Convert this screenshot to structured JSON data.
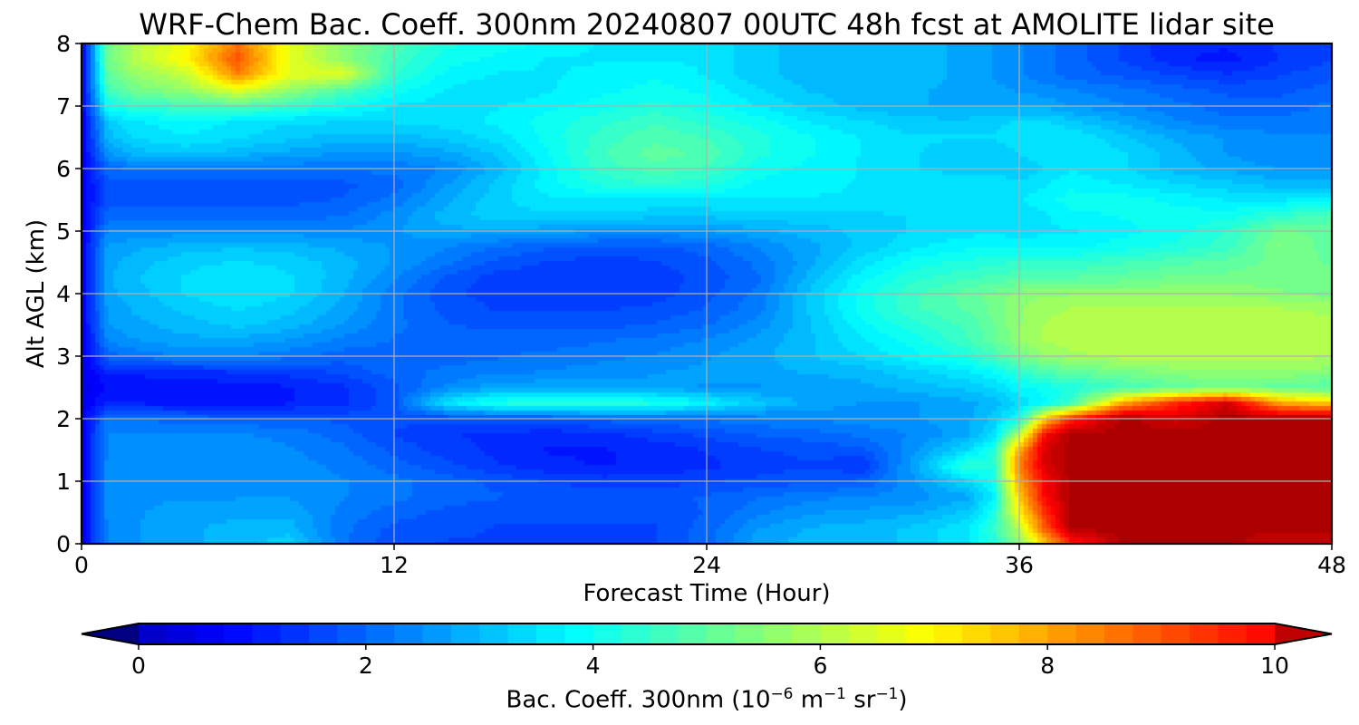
{
  "chart_data": {
    "type": "heatmap",
    "title": "WRF-Chem Bac. Coeff. 300nm  20240807 00UTC 48h fcst at AMOLITE lidar site",
    "xlabel": "Forecast Time (Hour)",
    "ylabel": "Alt AGL (km)",
    "xlim": [
      0,
      48
    ],
    "ylim": [
      0,
      8
    ],
    "x_ticks": [
      "0",
      "12",
      "24",
      "36",
      "48"
    ],
    "y_ticks": [
      "0",
      "1",
      "2",
      "3",
      "4",
      "5",
      "6",
      "7",
      "8"
    ],
    "grid": true,
    "colormap": "jet",
    "colorbar": {
      "orientation": "horizontal",
      "extend": "both",
      "range": [
        0,
        10
      ],
      "ticks": [
        "0",
        "2",
        "4",
        "6",
        "8",
        "10"
      ],
      "label_main": "Bac. Coeff. 300nm  (10",
      "label_exp1": "−6",
      "label_unit1": " m",
      "label_exp2": "−1",
      "label_unit2": " sr",
      "label_exp3": "−1",
      "label_end": ")"
    },
    "x": [
      0,
      1,
      2,
      4,
      6,
      8,
      10,
      12,
      14,
      16,
      18,
      20,
      22,
      24,
      26,
      28,
      30,
      32,
      34,
      35,
      36,
      37,
      38,
      40,
      42,
      44,
      46,
      48
    ],
    "y": [
      0,
      0.25,
      0.5,
      0.75,
      1,
      1.25,
      1.5,
      1.75,
      2,
      2.25,
      2.5,
      2.75,
      3,
      3.25,
      3.5,
      3.75,
      4,
      4.25,
      4.5,
      4.75,
      5,
      5.25,
      5.5,
      5.75,
      6,
      6.25,
      6.5,
      6.75,
      7,
      7.25,
      7.5,
      7.75,
      8
    ],
    "z": [
      [
        0.6,
        2.4,
        2.6,
        2.8,
        3.0,
        3.3,
        2.2,
        1.7,
        1.6,
        1.6,
        1.6,
        1.6,
        1.6,
        2.0,
        2.8,
        3.0,
        3.0,
        3.2,
        3.6,
        4.2,
        5.5,
        7.5,
        9.5,
        11.0,
        11.0,
        11.0,
        10.5,
        10.5
      ],
      [
        0.6,
        2.4,
        2.6,
        2.8,
        3.0,
        3.0,
        2.2,
        1.8,
        1.7,
        1.6,
        1.6,
        1.6,
        1.6,
        2.0,
        2.6,
        2.9,
        3.0,
        3.2,
        3.6,
        4.4,
        6.0,
        9.0,
        11.0,
        11.0,
        11.0,
        11.0,
        11.0,
        11.0
      ],
      [
        0.6,
        2.5,
        2.6,
        2.7,
        2.8,
        2.8,
        2.3,
        2.0,
        1.8,
        1.7,
        1.7,
        1.7,
        1.7,
        1.9,
        2.3,
        2.6,
        2.7,
        2.8,
        3.2,
        4.0,
        7.0,
        9.5,
        11.0,
        11.0,
        11.0,
        11.0,
        11.0,
        11.0
      ],
      [
        0.6,
        2.5,
        2.6,
        2.6,
        2.6,
        2.6,
        2.4,
        2.2,
        2.0,
        1.9,
        1.8,
        1.8,
        1.8,
        1.9,
        2.1,
        2.3,
        2.4,
        2.5,
        2.8,
        3.6,
        7.5,
        10.0,
        11.0,
        11.0,
        11.0,
        11.0,
        11.0,
        11.0
      ],
      [
        0.6,
        2.5,
        2.5,
        2.5,
        2.5,
        2.5,
        2.4,
        2.2,
        2.0,
        1.8,
        1.6,
        1.5,
        1.5,
        1.6,
        1.7,
        1.8,
        1.9,
        2.6,
        3.4,
        4.0,
        8.0,
        10.0,
        11.0,
        11.0,
        11.0,
        11.0,
        11.0,
        11.0
      ],
      [
        0.6,
        2.5,
        2.5,
        2.5,
        2.5,
        2.5,
        2.3,
        2.0,
        1.7,
        1.4,
        1.2,
        1.1,
        1.2,
        1.3,
        1.5,
        1.6,
        1.4,
        2.8,
        4.4,
        4.2,
        8.5,
        10.5,
        11.0,
        11.0,
        11.0,
        11.0,
        11.0,
        11.0
      ],
      [
        0.6,
        2.4,
        2.5,
        2.5,
        2.5,
        2.4,
        2.2,
        1.8,
        1.5,
        1.3,
        1.1,
        1.1,
        1.2,
        1.4,
        1.6,
        1.7,
        1.8,
        2.6,
        3.4,
        4.2,
        8.0,
        10.5,
        11.0,
        11.0,
        11.0,
        11.0,
        11.0,
        11.0
      ],
      [
        0.6,
        2.4,
        2.4,
        2.4,
        2.4,
        2.3,
        2.0,
        1.6,
        1.4,
        1.3,
        1.2,
        1.3,
        1.5,
        1.7,
        1.9,
        2.0,
        2.2,
        2.4,
        2.8,
        3.4,
        6.0,
        10.0,
        11.0,
        11.0,
        11.0,
        11.0,
        11.0,
        11.0
      ],
      [
        0.6,
        2.2,
        2.1,
        2.0,
        1.9,
        1.9,
        1.8,
        1.7,
        1.7,
        1.8,
        1.9,
        2.0,
        2.1,
        2.2,
        2.3,
        2.4,
        2.5,
        2.6,
        2.8,
        3.2,
        4.0,
        7.5,
        9.5,
        11.0,
        10.5,
        11.0,
        11.0,
        11.0
      ],
      [
        0.5,
        1.2,
        1.1,
        1.0,
        1.0,
        1.1,
        1.3,
        1.8,
        3.6,
        4.2,
        4.4,
        4.4,
        4.2,
        3.8,
        3.2,
        2.8,
        2.6,
        2.6,
        2.8,
        3.0,
        3.4,
        3.8,
        4.5,
        8.0,
        9.5,
        10.5,
        8.0,
        7.5
      ],
      [
        0.5,
        0.9,
        0.9,
        0.9,
        1.0,
        1.1,
        1.3,
        1.8,
        2.4,
        2.8,
        2.8,
        2.8,
        2.7,
        2.6,
        2.6,
        2.7,
        2.8,
        3.0,
        3.2,
        3.4,
        3.8,
        4.0,
        4.2,
        4.6,
        5.0,
        5.2,
        5.0,
        4.8
      ],
      [
        0.5,
        1.2,
        1.2,
        1.3,
        1.4,
        1.5,
        1.7,
        2.0,
        2.2,
        2.3,
        2.4,
        2.5,
        2.6,
        2.7,
        2.8,
        2.9,
        3.0,
        3.3,
        3.6,
        3.9,
        4.4,
        4.8,
        5.0,
        5.3,
        5.5,
        5.6,
        5.6,
        5.5
      ],
      [
        0.5,
        2.0,
        2.2,
        2.4,
        2.4,
        2.2,
        2.0,
        2.0,
        2.0,
        2.1,
        2.2,
        2.3,
        2.4,
        2.6,
        2.8,
        3.1,
        3.4,
        3.8,
        4.2,
        4.6,
        5.2,
        5.6,
        5.8,
        6.0,
        6.0,
        6.0,
        6.0,
        5.9
      ],
      [
        0.5,
        2.4,
        2.6,
        2.8,
        2.8,
        2.6,
        2.3,
        2.1,
        2.0,
        2.0,
        2.0,
        2.1,
        2.2,
        2.4,
        2.7,
        3.1,
        3.6,
        4.0,
        4.6,
        5.0,
        5.6,
        5.9,
        6.0,
        6.0,
        6.0,
        6.0,
        6.0,
        5.9
      ],
      [
        0.6,
        2.6,
        2.8,
        3.0,
        3.2,
        3.0,
        2.6,
        2.2,
        1.9,
        1.8,
        1.8,
        1.8,
        1.9,
        2.1,
        2.5,
        3.1,
        3.8,
        4.3,
        4.7,
        5.1,
        5.6,
        5.9,
        6.0,
        6.0,
        6.0,
        6.0,
        6.0,
        6.0
      ],
      [
        0.6,
        2.7,
        2.9,
        3.2,
        3.4,
        3.2,
        2.8,
        2.2,
        1.8,
        1.6,
        1.6,
        1.6,
        1.7,
        1.9,
        2.3,
        3.2,
        4.0,
        4.6,
        4.9,
        5.2,
        5.6,
        5.8,
        5.9,
        6.0,
        6.0,
        6.0,
        5.9,
        5.8
      ],
      [
        0.6,
        2.8,
        3.0,
        3.4,
        3.6,
        3.4,
        2.9,
        2.2,
        1.7,
        1.5,
        1.4,
        1.4,
        1.5,
        1.8,
        2.2,
        3.2,
        4.0,
        4.6,
        5.0,
        5.2,
        5.5,
        5.6,
        5.6,
        5.6,
        5.6,
        5.6,
        5.4,
        5.3
      ],
      [
        0.6,
        2.8,
        3.1,
        3.4,
        3.6,
        3.4,
        3.0,
        2.4,
        1.8,
        1.5,
        1.4,
        1.4,
        1.5,
        1.7,
        2.1,
        3.0,
        3.8,
        4.3,
        4.6,
        4.7,
        4.8,
        4.8,
        4.9,
        5.0,
        5.2,
        5.2,
        5.3,
        5.2
      ],
      [
        0.6,
        2.8,
        3.0,
        3.3,
        3.4,
        3.3,
        3.0,
        2.6,
        2.2,
        1.8,
        1.6,
        1.5,
        1.6,
        1.8,
        2.2,
        2.8,
        3.5,
        4.0,
        4.2,
        4.3,
        4.4,
        4.4,
        4.4,
        4.6,
        4.8,
        5.0,
        5.2,
        5.1
      ],
      [
        0.6,
        2.7,
        2.8,
        3.0,
        3.1,
        3.0,
        2.8,
        2.6,
        2.4,
        2.1,
        1.9,
        1.8,
        1.8,
        2.0,
        2.4,
        2.8,
        3.2,
        3.6,
        3.8,
        3.9,
        3.8,
        3.8,
        3.8,
        4.0,
        4.2,
        4.5,
        5.4,
        5.0
      ],
      [
        0.6,
        2.4,
        2.4,
        2.5,
        2.5,
        2.5,
        2.4,
        2.6,
        2.8,
        2.8,
        2.7,
        2.6,
        2.6,
        2.6,
        2.8,
        3.0,
        3.2,
        3.4,
        3.5,
        3.6,
        3.4,
        3.6,
        3.6,
        3.8,
        4.0,
        4.4,
        5.2,
        5.0
      ],
      [
        0.6,
        2.0,
        2.0,
        2.0,
        2.0,
        2.0,
        2.1,
        2.5,
        3.0,
        3.3,
        3.3,
        3.3,
        3.2,
        3.2,
        3.3,
        3.3,
        3.3,
        3.4,
        3.4,
        3.4,
        3.4,
        3.6,
        3.8,
        3.9,
        4.0,
        4.0,
        4.4,
        4.8
      ],
      [
        0.6,
        1.8,
        1.8,
        1.8,
        1.8,
        1.8,
        1.9,
        2.2,
        2.8,
        3.3,
        3.6,
        3.6,
        3.6,
        3.6,
        3.6,
        3.6,
        3.6,
        3.6,
        3.6,
        3.6,
        3.6,
        3.8,
        4.0,
        4.0,
        3.8,
        3.6,
        3.6,
        3.8
      ],
      [
        0.6,
        1.8,
        1.8,
        1.8,
        1.8,
        1.8,
        1.8,
        2.0,
        2.6,
        3.2,
        3.8,
        4.2,
        4.4,
        4.2,
        3.8,
        3.7,
        3.6,
        3.6,
        3.6,
        3.6,
        3.4,
        3.6,
        3.8,
        3.6,
        3.4,
        3.2,
        3.0,
        3.0
      ],
      [
        0.6,
        2.0,
        2.2,
        2.2,
        2.2,
        2.2,
        2.2,
        2.2,
        2.4,
        3.0,
        3.8,
        4.5,
        4.8,
        4.6,
        4.0,
        3.8,
        3.6,
        3.4,
        3.2,
        3.2,
        3.2,
        3.4,
        3.6,
        3.4,
        3.0,
        2.8,
        2.6,
        2.6
      ],
      [
        0.6,
        2.6,
        3.0,
        3.2,
        3.0,
        2.8,
        2.6,
        2.6,
        2.8,
        3.2,
        3.9,
        4.6,
        5.0,
        4.8,
        4.2,
        3.9,
        3.6,
        3.4,
        3.2,
        3.2,
        3.4,
        3.5,
        3.6,
        3.4,
        3.0,
        2.6,
        2.4,
        2.4
      ],
      [
        0.6,
        3.0,
        3.4,
        3.6,
        3.4,
        3.2,
        3.0,
        3.0,
        3.2,
        3.5,
        4.0,
        4.5,
        4.8,
        4.6,
        4.2,
        3.9,
        3.6,
        3.4,
        3.4,
        3.4,
        3.5,
        3.6,
        3.6,
        3.2,
        2.8,
        2.6,
        2.4,
        2.4
      ],
      [
        0.6,
        3.2,
        3.6,
        3.8,
        3.6,
        3.4,
        3.4,
        3.4,
        3.5,
        3.7,
        4.0,
        4.3,
        4.6,
        4.3,
        4.0,
        3.6,
        3.4,
        3.2,
        3.2,
        3.3,
        3.4,
        3.4,
        3.2,
        2.8,
        2.4,
        2.2,
        2.2,
        2.2
      ],
      [
        0.6,
        4.0,
        4.4,
        4.6,
        4.8,
        4.5,
        4.0,
        3.6,
        3.5,
        3.6,
        3.8,
        4.0,
        4.2,
        4.0,
        3.6,
        3.3,
        3.0,
        2.9,
        2.8,
        2.8,
        2.8,
        2.8,
        2.6,
        2.4,
        2.2,
        2.0,
        2.0,
        2.2
      ],
      [
        0.6,
        4.6,
        5.2,
        5.6,
        6.6,
        5.6,
        4.8,
        4.0,
        3.6,
        3.4,
        3.6,
        3.8,
        4.0,
        3.8,
        3.4,
        3.1,
        3.0,
        2.9,
        2.8,
        2.7,
        2.6,
        2.5,
        2.4,
        2.2,
        2.0,
        1.8,
        1.8,
        2.0
      ],
      [
        0.6,
        5.0,
        5.6,
        6.2,
        8.4,
        6.6,
        6.6,
        4.4,
        3.8,
        3.6,
        3.6,
        3.7,
        3.8,
        3.6,
        3.2,
        3.0,
        3.0,
        3.0,
        2.8,
        2.6,
        2.4,
        2.2,
        2.0,
        1.8,
        1.6,
        1.4,
        1.6,
        1.8
      ],
      [
        0.6,
        5.2,
        6.0,
        7.0,
        9.0,
        6.6,
        5.6,
        4.6,
        4.0,
        3.8,
        3.6,
        3.6,
        3.6,
        3.6,
        3.2,
        3.0,
        3.0,
        3.0,
        2.8,
        2.6,
        2.4,
        2.2,
        2.0,
        1.6,
        1.2,
        1.0,
        1.4,
        1.6
      ],
      [
        0.6,
        5.2,
        6.0,
        6.8,
        8.6,
        6.6,
        5.6,
        4.8,
        4.2,
        4.0,
        3.8,
        3.6,
        3.6,
        3.6,
        3.2,
        3.0,
        3.0,
        3.0,
        2.8,
        2.6,
        2.4,
        2.2,
        2.0,
        1.6,
        1.2,
        1.2,
        1.4,
        1.6
      ]
    ]
  }
}
